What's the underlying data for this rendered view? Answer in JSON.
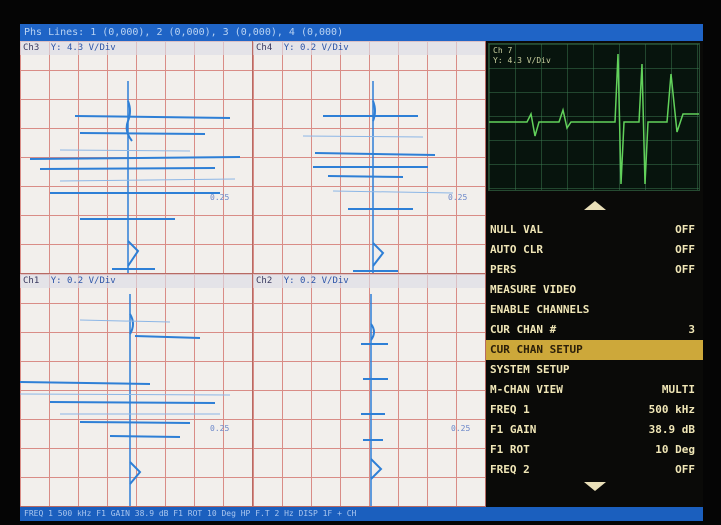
{
  "top_bar": {
    "text": "Phs Lines: 1 (0,000), 2 (0,000), 3 (0,000), 4 (0,000)"
  },
  "quadrants": [
    {
      "channel": "Ch3",
      "scale": "Y: 4.3 V/Div",
      "x_label": "0.25"
    },
    {
      "channel": "Ch4",
      "scale": "Y: 0.2 V/Div",
      "x_label": "0.25"
    },
    {
      "channel": "Ch1",
      "scale": "Y: 0.2 V/Div",
      "x_label": "0.25"
    },
    {
      "channel": "Ch2",
      "scale": "Y: 0.2 V/Div",
      "x_label": "0.25"
    }
  ],
  "scope": {
    "channel": "Ch 7",
    "scale": "Y: 4.3 V/Div"
  },
  "menu": {
    "items": [
      {
        "label": "NULL VAL",
        "value": "OFF"
      },
      {
        "label": "AUTO CLR",
        "value": "OFF"
      },
      {
        "label": "PERS",
        "value": "OFF"
      },
      {
        "label": "MEASURE VIDEO",
        "value": ""
      },
      {
        "label": "ENABLE CHANNELS",
        "value": ""
      },
      {
        "label": "CUR CHAN #",
        "value": "3"
      },
      {
        "label": "CUR CHAN SETUP",
        "value": ""
      },
      {
        "label": "SYSTEM SETUP",
        "value": ""
      },
      {
        "label": "M-CHAN VIEW",
        "value": "MULTI"
      },
      {
        "label": "FREQ 1",
        "value": "500 kHz"
      },
      {
        "label": "F1 GAIN",
        "value": "38.9 dB"
      },
      {
        "label": "F1 ROT",
        "value": "10 Deg"
      },
      {
        "label": "FREQ 2",
        "value": "OFF"
      }
    ],
    "selected_index": 6
  },
  "bottom_bar": {
    "text": "FREQ 1   500 kHz  F1 GAIN 38.9 dB  F1 ROT   10 Deg  HP F.T    2 Hz  DISP 1F + CH"
  },
  "colors": {
    "menu_text": "#f0e6b6",
    "highlight": "#cda83a",
    "bar": "#1f64c6",
    "grid": "#d98c86",
    "trace": "#2e7fd6",
    "scope_trace": "#62d25b"
  }
}
